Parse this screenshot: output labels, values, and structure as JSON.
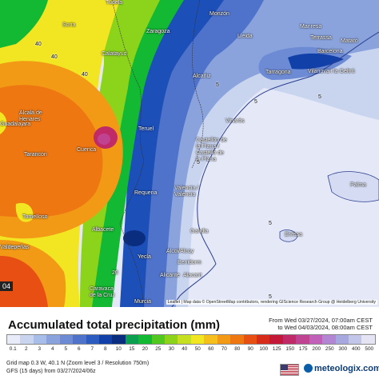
{
  "map": {
    "badge": "04",
    "attribution": "Leaflet | Map data © OpenStreetMap contributors, rendering GIScience Research Group @ Heidelberg University",
    "cities": [
      {
        "name": "Tudela",
        "style": "light"
      },
      {
        "name": "Soria",
        "style": "light"
      },
      {
        "name": "Zaragoza",
        "style": "light"
      },
      {
        "name": "Monzón",
        "style": "light"
      },
      {
        "name": "Lleida",
        "style": "light"
      },
      {
        "name": "Manresa",
        "style": "light"
      },
      {
        "name": "Terrassa",
        "style": "light"
      },
      {
        "name": "Mataró",
        "style": "light"
      },
      {
        "name": "Barcelona",
        "style": "light"
      },
      {
        "name": "Calatayud",
        "style": "light"
      },
      {
        "name": "Tarragona",
        "style": "light"
      },
      {
        "name": "Vilanova i la Geltrú",
        "style": "light"
      },
      {
        "name": "Alcañiz",
        "style": "light"
      },
      {
        "name": "Alcalá de Henares",
        "style": "light"
      },
      {
        "name": "Guadalajara",
        "style": "light"
      },
      {
        "name": "Teruel",
        "style": "light"
      },
      {
        "name": "Vinaròs",
        "style": "light"
      },
      {
        "name": "Cuenca",
        "style": "light"
      },
      {
        "name": "Tarancón",
        "style": "light"
      },
      {
        "name": "Castellón de la Plana / Castelló de la Plana",
        "style": "light"
      },
      {
        "name": "Requena",
        "style": "light"
      },
      {
        "name": "Valencia / València",
        "style": "light"
      },
      {
        "name": "Palma",
        "style": "light"
      },
      {
        "name": "Tomelloso",
        "style": "light"
      },
      {
        "name": "Albacete",
        "style": "light"
      },
      {
        "name": "Gandia",
        "style": "light"
      },
      {
        "name": "Eivissa",
        "style": "light"
      },
      {
        "name": "Valdepeñas",
        "style": "light"
      },
      {
        "name": "Yecla",
        "style": "light"
      },
      {
        "name": "Alcoi/Alcoy",
        "style": "light"
      },
      {
        "name": "Benidorm",
        "style": "light"
      },
      {
        "name": "Alicante",
        "style": "light"
      },
      {
        "name": "Alacant",
        "style": "light"
      },
      {
        "name": "Caravaca de la Cruz",
        "style": "light"
      },
      {
        "name": "Murcia",
        "style": "light"
      }
    ],
    "contour_labels": [
      "40",
      "40",
      "40",
      "20",
      "5",
      "5",
      "5",
      "5",
      "5",
      "5"
    ]
  },
  "legend": {
    "title": "Accumulated total precipitation (mm)",
    "from": "From Wed 03/27/2024, 07:00am CEST",
    "to": "to Wed 04/03/2024, 08:00am CEST",
    "ticks": [
      "0.1",
      "2",
      "3",
      "4",
      "5",
      "6",
      "7",
      "8",
      "10",
      "15",
      "20",
      "25",
      "30",
      "40",
      "50",
      "60",
      "70",
      "80",
      "90",
      "100",
      "125",
      "150",
      "175",
      "200",
      "250",
      "300",
      "400",
      "500"
    ],
    "colors": [
      "#e8ecf8",
      "#c9d4ef",
      "#a8bde7",
      "#8aa3dd",
      "#6d8bd4",
      "#4f73ca",
      "#2c5cc0",
      "#1140a8",
      "#0a2d7f",
      "#0aa050",
      "#13b833",
      "#50c820",
      "#8cd41c",
      "#c6e021",
      "#f2e623",
      "#f6c01c",
      "#f29a16",
      "#ee7712",
      "#e84f12",
      "#d82c1a",
      "#c41838",
      "#c02a66",
      "#c04392",
      "#c160b8",
      "#b386d3",
      "#a8a8e0",
      "#c2c7ea",
      "#e4e4f4"
    ],
    "info1": "Grid map 0.3 W, 40.1 N (Zoom level 3 / Resolution 750m)",
    "info2": "GFS (15 days) from 03/27/2024/06z",
    "logo": "meteologix.com"
  }
}
